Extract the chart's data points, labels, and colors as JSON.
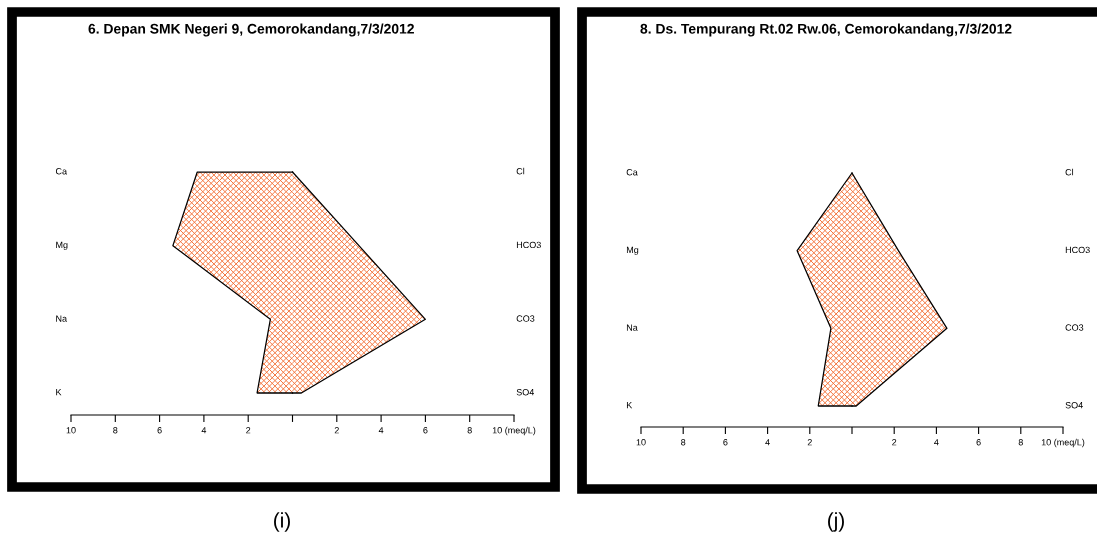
{
  "chart_data": [
    {
      "type": "area",
      "orientation": "horizontal",
      "title": "6. Depan SMK Negeri 9, Cemorokandang,7/3/2012",
      "categories": [
        "Ca",
        "Mg",
        "Na",
        "K"
      ],
      "y2_categories": [
        "Cl",
        "HCO3",
        "CO3",
        "SO4"
      ],
      "series": [
        {
          "color": "#f4733a",
          "values": [
            -4.3,
            -5.4,
            -1.0,
            -1.6
          ]
        },
        {
          "color": "#f4743c",
          "values": [
            0,
            3.0,
            6.0,
            0.4
          ]
        }
      ],
      "xlim": [
        -10,
        10
      ],
      "xticks": [
        {
          "value": -10,
          "label": "10"
        },
        {
          "value": -8,
          "label": "8"
        },
        {
          "value": -6,
          "label": "6"
        },
        {
          "value": -4,
          "label": "4"
        },
        {
          "value": -2,
          "label": "2"
        },
        {
          "value": 0,
          "label": null
        },
        2,
        4,
        6,
        8,
        {
          "value": 10,
          "label": "10 (meq/L)"
        }
      ],
      "grid": false,
      "legend": false,
      "annotations": [
        "(i)"
      ]
    },
    {
      "type": "area",
      "orientation": "horizontal",
      "title": "8. Ds. Tempurang Rt.02 Rw.06, Cemorokandang,7/3/2012",
      "categories": [
        "Ca",
        "Mg",
        "Na",
        "K"
      ],
      "y2_categories": [
        "Cl",
        "HCO3",
        "CO3",
        "SO4"
      ],
      "series": [
        {
          "color": "#f4733a",
          "values": [
            0,
            -2.6,
            -1.0,
            -1.6
          ]
        },
        {
          "color": "#f4743c",
          "values": [
            0,
            2.2,
            4.5,
            0.2
          ]
        }
      ],
      "xlim": [
        -10,
        10
      ],
      "xticks": [
        {
          "value": -10,
          "label": "10"
        },
        {
          "value": -8,
          "label": "8"
        },
        {
          "value": -6,
          "label": "6"
        },
        {
          "value": -4,
          "label": "4"
        },
        {
          "value": -2,
          "label": "2"
        },
        {
          "value": 0,
          "label": null
        },
        2,
        4,
        6,
        8,
        {
          "value": 10,
          "label": "10 (meq/L)"
        }
      ],
      "grid": false,
      "legend": false,
      "annotations": [
        "(j)"
      ]
    }
  ]
}
